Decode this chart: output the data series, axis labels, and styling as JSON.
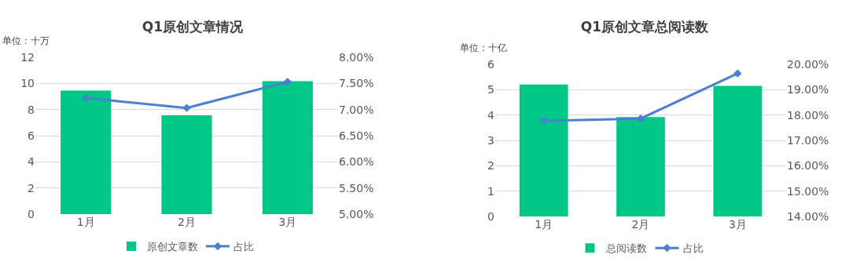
{
  "chart_data": [
    {
      "type": "bar",
      "title": "Q1原创文章情况",
      "ylabel": "单位：十万",
      "categories": [
        "1月",
        "2月",
        "3月"
      ],
      "legend": "bottom",
      "grid": "y",
      "series": [
        {
          "name": "原创文章数",
          "color": "#00c785",
          "values": [
            9.45,
            7.56,
            10.17
          ]
        },
        {
          "name": "占比",
          "type": "line",
          "axis": "y2",
          "color": "#4a7fd4",
          "marker": "diamond",
          "values": [
            7.22,
            7.03,
            7.53
          ]
        }
      ],
      "ylim": [
        0,
        12
      ],
      "yticks": [
        0,
        2,
        4,
        6,
        8,
        10,
        12
      ],
      "y2lim": [
        5,
        8
      ],
      "y2ticks": [
        {
          "value": 5,
          "label": "5.00%"
        },
        {
          "value": 5.5,
          "label": "5.50%"
        },
        {
          "value": 6,
          "label": "6.00%"
        },
        {
          "value": 6.5,
          "label": "6.50%"
        },
        {
          "value": 7,
          "label": "7.00%"
        },
        {
          "value": 7.5,
          "label": "7.50%"
        },
        {
          "value": 8,
          "label": "8.00%"
        }
      ]
    },
    {
      "type": "bar",
      "title": "Q1原创文章总阅读数",
      "ylabel": "单位：十亿",
      "categories": [
        "1月",
        "2月",
        "3月"
      ],
      "legend": "bottom",
      "grid": "y",
      "series": [
        {
          "name": "总阅读数",
          "color": "#00c785",
          "values": [
            5.2,
            3.92,
            5.15
          ]
        },
        {
          "name": "占比",
          "type": "line",
          "axis": "y2",
          "color": "#4a7fd4",
          "marker": "diamond",
          "values": [
            17.77,
            17.86,
            19.64
          ]
        }
      ],
      "ylim": [
        0,
        6
      ],
      "yticks": [
        0,
        1,
        2,
        3,
        4,
        5,
        6
      ],
      "y2lim": [
        14,
        20
      ],
      "y2ticks": [
        {
          "value": 14,
          "label": "14.00%"
        },
        {
          "value": 15,
          "label": "15.00%"
        },
        {
          "value": 16,
          "label": "16.00%"
        },
        {
          "value": 17,
          "label": "17.00%"
        },
        {
          "value": 18,
          "label": "18.00%"
        },
        {
          "value": 19,
          "label": "19.00%"
        },
        {
          "value": 20,
          "label": "20.00%"
        }
      ]
    }
  ]
}
